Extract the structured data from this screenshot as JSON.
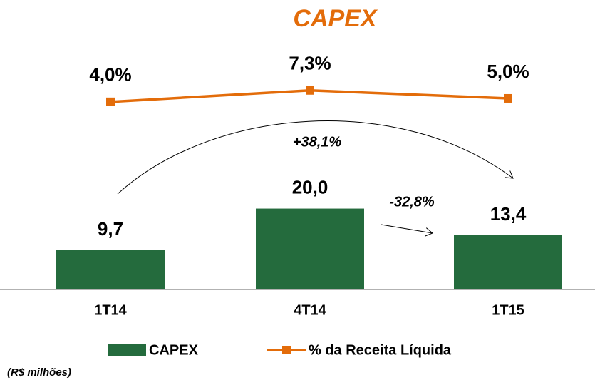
{
  "chart_data": {
    "type": "combo",
    "title": "CAPEX",
    "categories": [
      "1T14",
      "4T14",
      "1T15"
    ],
    "series": [
      {
        "name": "CAPEX",
        "type": "bar",
        "color": "#246b3d",
        "values": [
          9.7,
          20.0,
          13.4
        ],
        "value_labels": [
          "9,7",
          "20,0",
          "13,4"
        ]
      },
      {
        "name": "% da Receita Líquida",
        "type": "line",
        "axis": "y2",
        "color": "#e36c0a",
        "values": [
          4.0,
          7.3,
          5.0
        ],
        "value_labels": [
          "4,0%",
          "7,3%",
          "5,0%"
        ]
      }
    ],
    "ylim": [
      0,
      61
    ],
    "y2lim": [
      -50,
      21
    ],
    "annotations": [
      "+38,1%",
      "-32,8%"
    ],
    "note": "(R$ milhões)"
  }
}
